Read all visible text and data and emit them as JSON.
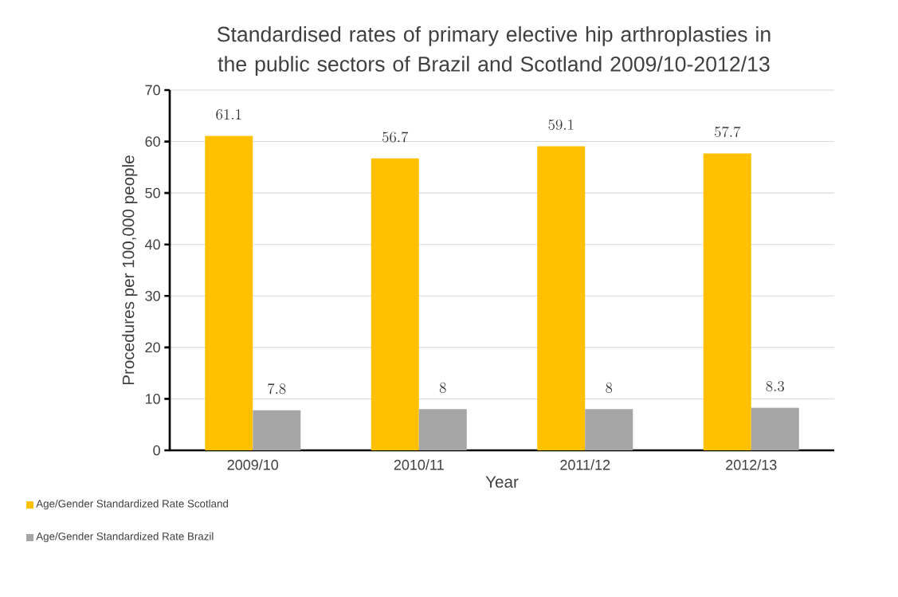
{
  "chart_data": {
    "type": "bar",
    "title": "Standardised rates of primary elective hip arthroplasties in the public sectors of Brazil and Scotland 2009/10-2012/13",
    "xlabel": "Year",
    "ylabel": "Procedures per 100,000 people",
    "categories": [
      "2009/10",
      "2010/11",
      "2011/12",
      "2012/13"
    ],
    "series": [
      {
        "name": "Age/Gender Standardized Rate Scotland",
        "color": "#ffc000",
        "values": [
          61.1,
          56.7,
          59.1,
          57.7
        ]
      },
      {
        "name": "Age/Gender Standardized Rate Brazil",
        "color": "#a5a5a5",
        "values": [
          7.8,
          8,
          8,
          8.3
        ]
      }
    ],
    "ylim": [
      0,
      70
    ],
    "yticks": [
      0,
      10,
      20,
      30,
      40,
      50,
      60,
      70
    ],
    "grid": "y",
    "legend": "bottom left",
    "data_labels": true
  }
}
